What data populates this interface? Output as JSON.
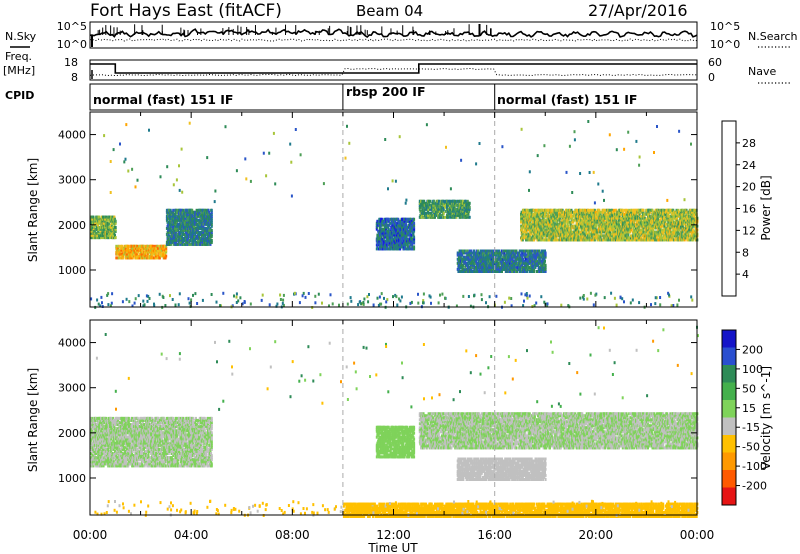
{
  "header": {
    "station": "Fort Hays East (fitACF)",
    "beam": "Beam 04",
    "date": "27/Apr/2016"
  },
  "side_labels": {
    "nsky": "N.Sky",
    "nsearch": "N.Search",
    "freq_line1": "Freq.",
    "freq_line2": "[MHz]",
    "nave": "Nave",
    "cpid": "CPID"
  },
  "noise_panel": {
    "left_ticks": [
      "10^5",
      "10^0"
    ],
    "right_ticks": [
      "10^5",
      "10^0"
    ]
  },
  "freq_panel": {
    "left_ticks": [
      "18",
      "8"
    ],
    "right_ticks": [
      "60",
      "0"
    ]
  },
  "cpid_segments": [
    {
      "label": "normal (fast) 151 IF",
      "start_hour": 0
    },
    {
      "label": "rbsp 200 IF",
      "start_hour": 10
    },
    {
      "label": "normal (fast) 151 IF",
      "start_hour": 16
    }
  ],
  "colors": {
    "power_scale": [
      "#1414e6",
      "#2a55c8",
      "#1f7a8c",
      "#2e8b57",
      "#4d9e56",
      "#a8c53a",
      "#f0c020",
      "#ffa500",
      "#ff6a00",
      "#f01414"
    ],
    "velocity_scale": [
      "#1414c8",
      "#2a4fd0",
      "#2e8b57",
      "#44b04c",
      "#7fd35a",
      "#c0c0c0",
      "#ffc000",
      "#ff9900",
      "#ff5a00",
      "#e61414"
    ]
  },
  "chart_data": [
    {
      "type": "heatmap",
      "panel": "power",
      "ylabel": "Slant Range [km]",
      "xlim": [
        0,
        24
      ],
      "ylim": [
        180,
        4500
      ],
      "y_ticks": [
        "1000",
        "2000",
        "3000",
        "4000"
      ],
      "colorbar_label": "Power [dB]",
      "colorbar_ticks": [
        "4",
        "8",
        "12",
        "16",
        "20",
        "24",
        "28"
      ],
      "colorbar_range": [
        0,
        31
      ],
      "echo_bands": [
        {
          "t_start": 0.0,
          "t_end": 1.0,
          "range_km": [
            1750,
            2250
          ],
          "value": 15
        },
        {
          "t_start": 1.0,
          "t_end": 3.0,
          "range_km": [
            1300,
            1600
          ],
          "value": 22
        },
        {
          "t_start": 3.0,
          "t_end": 4.8,
          "range_km": [
            1600,
            2400
          ],
          "value": 9
        },
        {
          "t_start": 11.3,
          "t_end": 12.8,
          "range_km": [
            1500,
            2200
          ],
          "value": 7
        },
        {
          "t_start": 13.0,
          "t_end": 15.0,
          "range_km": [
            2200,
            2600
          ],
          "value": 12
        },
        {
          "t_start": 14.5,
          "t_end": 18.0,
          "range_km": [
            1000,
            1500
          ],
          "value": 8
        },
        {
          "t_start": 17.0,
          "t_end": 24.0,
          "range_km": [
            1700,
            2400
          ],
          "value": 17
        }
      ]
    },
    {
      "type": "heatmap",
      "panel": "velocity",
      "ylabel": "Slant Range [km]",
      "xlim": [
        0,
        24
      ],
      "ylim": [
        180,
        4500
      ],
      "y_ticks": [
        "1000",
        "2000",
        "3000",
        "4000"
      ],
      "colorbar_label": "Velocity [m s^-1]",
      "colorbar_ticks": [
        "200",
        "100",
        "50",
        "15",
        "-15",
        "-50",
        "-100",
        "-200"
      ],
      "colorbar_range": [
        -250,
        250
      ],
      "echo_bands": [
        {
          "t_start": 0.0,
          "t_end": 4.8,
          "range_km": [
            1300,
            2400
          ],
          "value": 0
        },
        {
          "t_start": 11.3,
          "t_end": 12.8,
          "range_km": [
            1500,
            2200
          ],
          "value": 30
        },
        {
          "t_start": 13.0,
          "t_end": 24.0,
          "range_km": [
            1700,
            2500
          ],
          "value": 0
        },
        {
          "t_start": 14.5,
          "t_end": 18.0,
          "range_km": [
            1000,
            1500
          ],
          "value": -10
        },
        {
          "t_start": 10.0,
          "t_end": 24.0,
          "range_km": [
            180,
            500
          ],
          "value": -60
        }
      ]
    }
  ],
  "x_axis": {
    "ticks": [
      "00:00",
      "04:00",
      "08:00",
      "12:00",
      "16:00",
      "20:00",
      "00:00"
    ],
    "label": "Time UT"
  }
}
